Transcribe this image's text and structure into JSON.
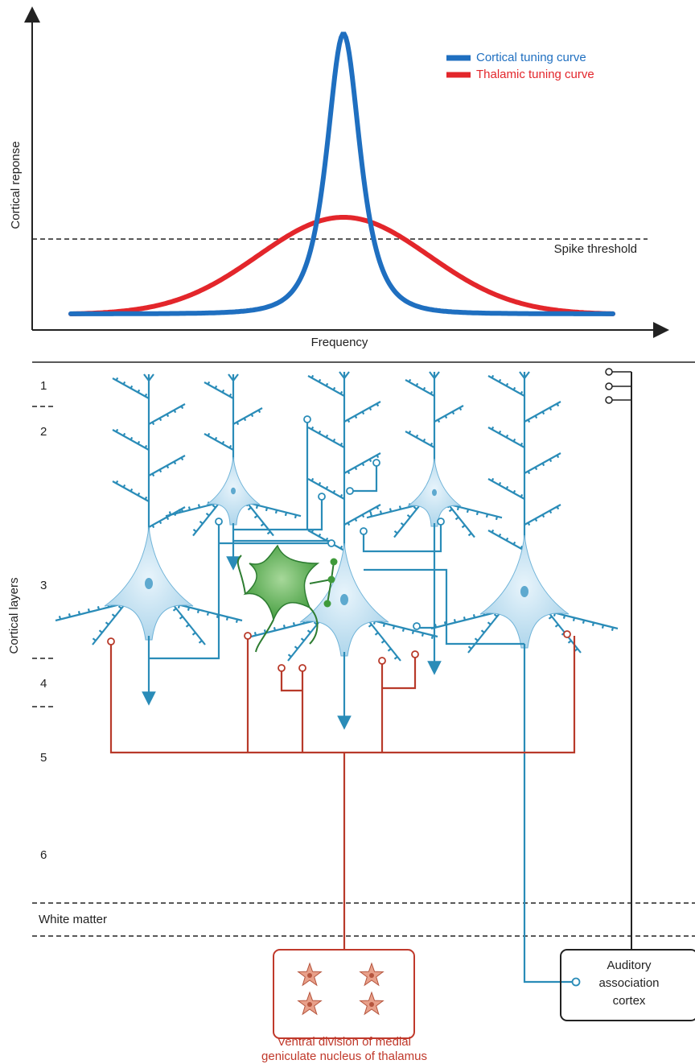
{
  "plot": {
    "y_axis_label": "Cortical reponse",
    "x_axis_label": "Frequency",
    "threshold_label": "Spike threshold",
    "legend": [
      {
        "name": "Cortical tuning curve",
        "color": "#1f6fc0"
      },
      {
        "name": "Thalamic tuning curve",
        "color": "#e3262b"
      }
    ]
  },
  "layers": {
    "title": "Cortical layers",
    "labels": [
      "1",
      "2",
      "3",
      "4",
      "5",
      "6"
    ],
    "white_matter": "White matter"
  },
  "thalamus": {
    "lines": [
      "Ventral division of medial",
      "geniculate nucleus of thalamus"
    ]
  },
  "association": {
    "lines": [
      "Auditory",
      "association",
      "cortex"
    ]
  }
}
